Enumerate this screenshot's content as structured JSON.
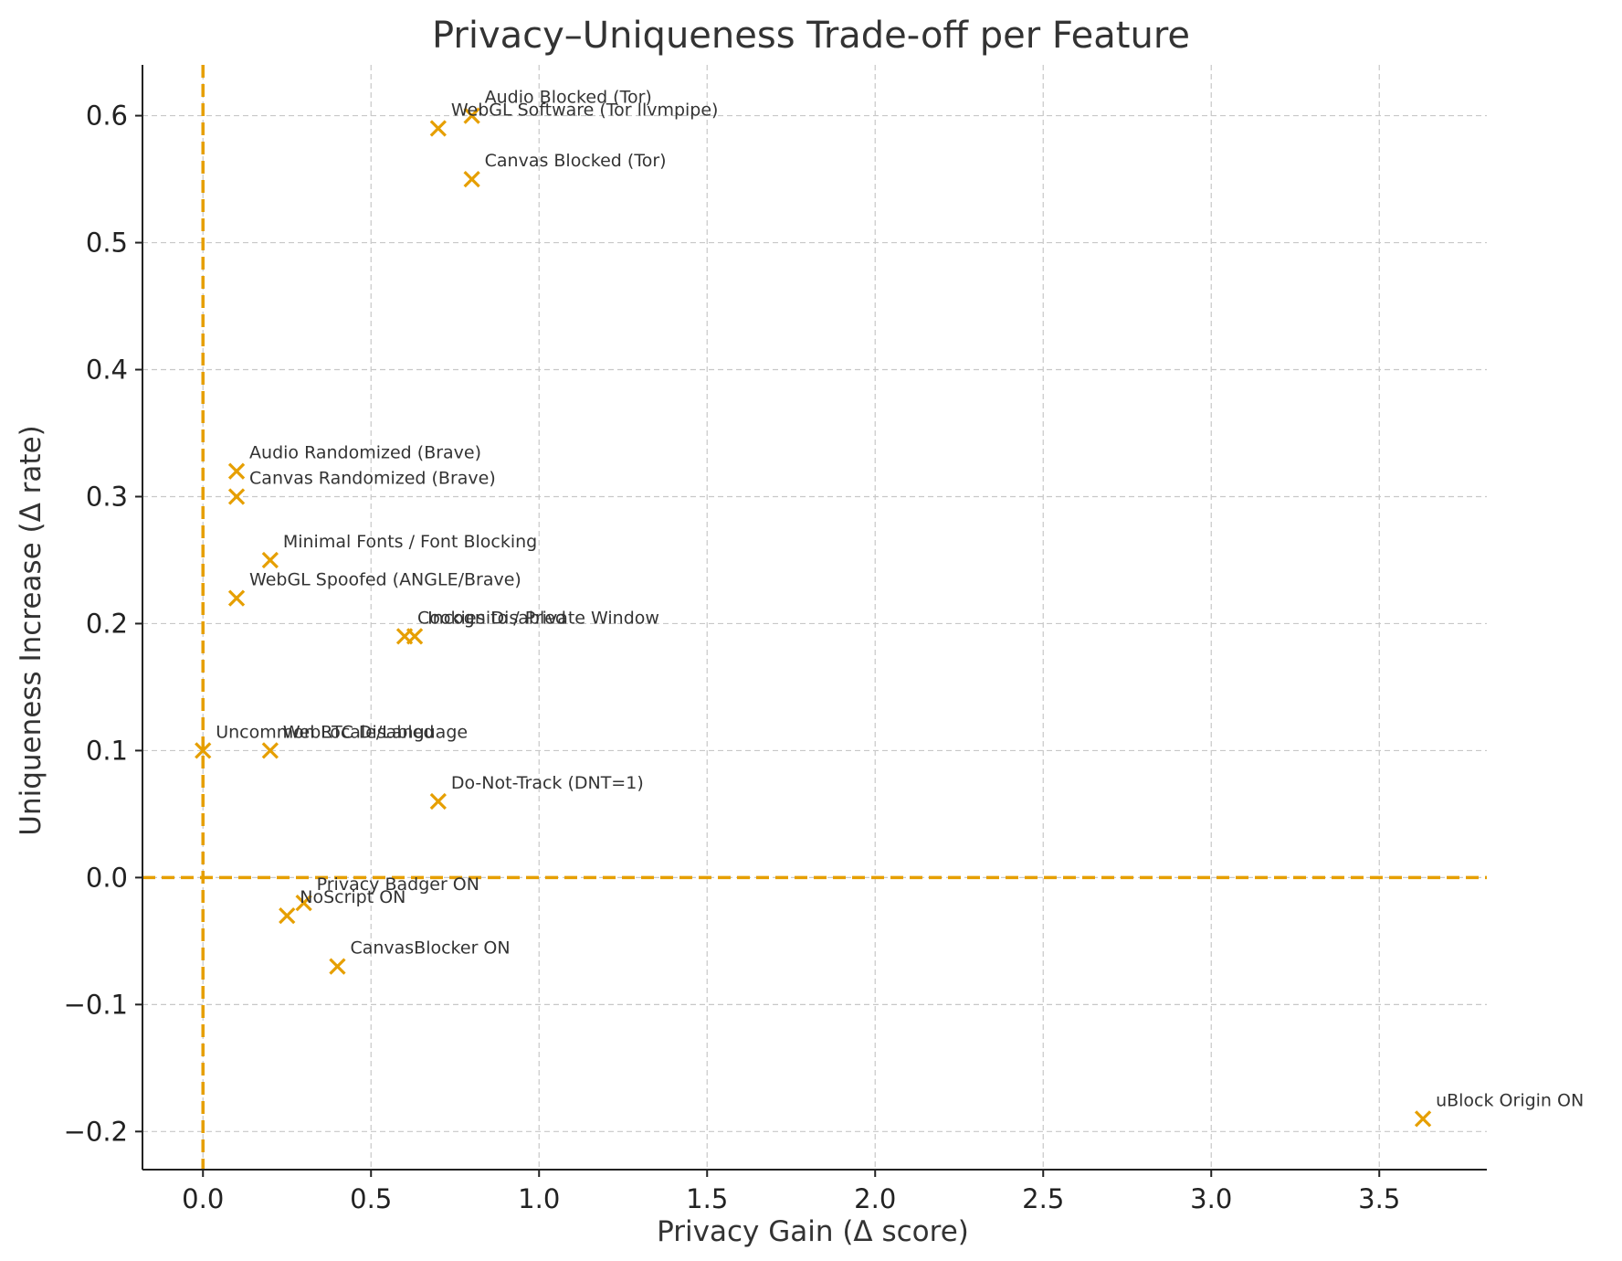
{
  "chart_data": {
    "type": "scatter",
    "title": "Privacy–Uniqueness Trade-off per Feature",
    "xlabel": "Privacy Gain (Δ score)",
    "ylabel": "Uniqueness Increase (Δ rate)",
    "xlim": [
      -0.18,
      3.82
    ],
    "ylim": [
      -0.23,
      0.64
    ],
    "x_ticks": [
      0.0,
      0.5,
      1.0,
      1.5,
      2.0,
      2.5,
      3.0,
      3.5
    ],
    "x_tick_labels": [
      "0.0",
      "0.5",
      "1.0",
      "1.5",
      "2.0",
      "2.5",
      "3.0",
      "3.5"
    ],
    "y_ticks": [
      -0.2,
      -0.1,
      0.0,
      0.1,
      0.2,
      0.3,
      0.4,
      0.5,
      0.6
    ],
    "y_tick_labels": [
      "−0.2",
      "−0.1",
      "0.0",
      "0.1",
      "0.2",
      "0.3",
      "0.4",
      "0.5",
      "0.6"
    ],
    "grid": true,
    "marker": "x",
    "color": "#E69F00",
    "reference_lines": {
      "x": 0,
      "y": 0,
      "style": "dashed",
      "color": "#E69F00"
    },
    "points": [
      {
        "label": "Audio Blocked (Tor)",
        "x": 0.8,
        "y": 0.6
      },
      {
        "label": "WebGL Software (Tor llvmpipe)",
        "x": 0.7,
        "y": 0.59
      },
      {
        "label": "Canvas Blocked (Tor)",
        "x": 0.8,
        "y": 0.55
      },
      {
        "label": "Audio Randomized (Brave)",
        "x": 0.1,
        "y": 0.32
      },
      {
        "label": "Canvas Randomized (Brave)",
        "x": 0.1,
        "y": 0.3
      },
      {
        "label": "Minimal Fonts / Font Blocking",
        "x": 0.2,
        "y": 0.25
      },
      {
        "label": "WebGL Spoofed (ANGLE/Brave)",
        "x": 0.1,
        "y": 0.22
      },
      {
        "label": "Cookies Disabled",
        "x": 0.6,
        "y": 0.19
      },
      {
        "label": "Incognito / Private Window",
        "x": 0.63,
        "y": 0.19
      },
      {
        "label": "Uncommon Locale/Language",
        "x": 0.0,
        "y": 0.1
      },
      {
        "label": "WebRTC Disabled",
        "x": 0.2,
        "y": 0.1
      },
      {
        "label": "Do-Not-Track (DNT=1)",
        "x": 0.7,
        "y": 0.06
      },
      {
        "label": "Privacy Badger ON",
        "x": 0.3,
        "y": -0.02
      },
      {
        "label": "NoScript ON",
        "x": 0.25,
        "y": -0.03
      },
      {
        "label": "CanvasBlocker ON",
        "x": 0.4,
        "y": -0.07
      },
      {
        "label": "uBlock Origin ON",
        "x": 3.63,
        "y": -0.19
      }
    ]
  }
}
